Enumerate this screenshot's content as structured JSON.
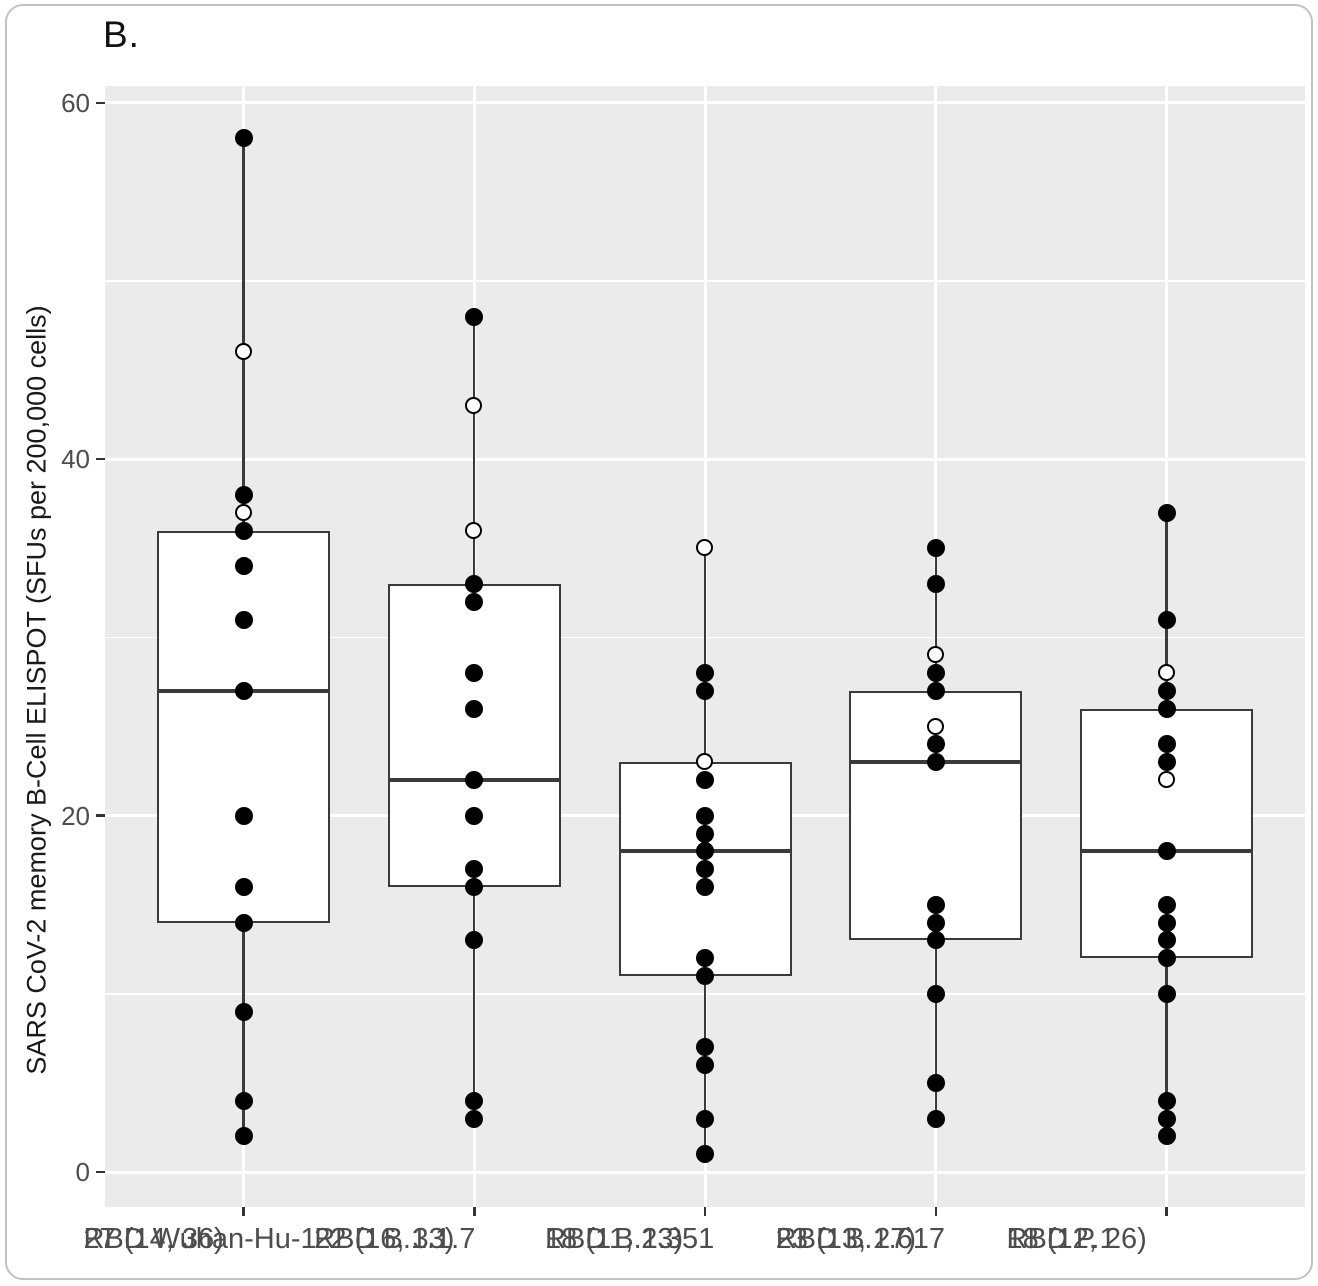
{
  "figure": {
    "panel_label": "B."
  },
  "chart_data": {
    "type": "box",
    "title": "B.",
    "xlabel": "",
    "ylabel": "SARS CoV-2 memory B-Cell ELISPOT (SFUs per 200,000 cells)",
    "ylim": [
      -1.96,
      60.94
    ],
    "yticks": [
      0,
      20,
      40,
      60
    ],
    "minor_gridlines": [
      10,
      30,
      50
    ],
    "grid": "on",
    "legend": "none",
    "point_style_note": "filled and open circles overlaid on boxplots",
    "categories": [
      {
        "label": "RBD Wuhan-Hu-1",
        "summary": "27 (14, 36)",
        "median": 27,
        "q1": 14,
        "q3": 36,
        "whisker_low": 2,
        "whisker_high": 58,
        "points": [
          {
            "value": 58,
            "open": false
          },
          {
            "value": 46,
            "open": true
          },
          {
            "value": 38,
            "open": false
          },
          {
            "value": 37,
            "open": true
          },
          {
            "value": 36,
            "open": false
          },
          {
            "value": 34,
            "open": false
          },
          {
            "value": 31,
            "open": false
          },
          {
            "value": 27,
            "open": false
          },
          {
            "value": 20,
            "open": false
          },
          {
            "value": 16,
            "open": false
          },
          {
            "value": 14,
            "open": false
          },
          {
            "value": 9,
            "open": false
          },
          {
            "value": 4,
            "open": false
          },
          {
            "value": 2,
            "open": false
          }
        ]
      },
      {
        "label": "RBD B.1.1.7",
        "summary": "22 (16, 33)",
        "median": 22,
        "q1": 16,
        "q3": 33,
        "whisker_low": 3,
        "whisker_high": 48,
        "points": [
          {
            "value": 48,
            "open": false
          },
          {
            "value": 43,
            "open": true
          },
          {
            "value": 36,
            "open": true
          },
          {
            "value": 33,
            "open": false
          },
          {
            "value": 32,
            "open": false
          },
          {
            "value": 28,
            "open": false
          },
          {
            "value": 26,
            "open": false
          },
          {
            "value": 22,
            "open": false
          },
          {
            "value": 20,
            "open": false
          },
          {
            "value": 17,
            "open": false
          },
          {
            "value": 16,
            "open": false
          },
          {
            "value": 13,
            "open": false
          },
          {
            "value": 4,
            "open": false
          },
          {
            "value": 3,
            "open": false
          }
        ]
      },
      {
        "label": "RBD B.1.351",
        "summary": "18 (11, 23)",
        "median": 18,
        "q1": 11,
        "q3": 23,
        "whisker_low": 1,
        "whisker_high": 35,
        "points": [
          {
            "value": 35,
            "open": true
          },
          {
            "value": 28,
            "open": false
          },
          {
            "value": 27,
            "open": false
          },
          {
            "value": 23,
            "open": true
          },
          {
            "value": 22,
            "open": false
          },
          {
            "value": 20,
            "open": false
          },
          {
            "value": 19,
            "open": false
          },
          {
            "value": 18,
            "open": false
          },
          {
            "value": 17,
            "open": false
          },
          {
            "value": 16,
            "open": false
          },
          {
            "value": 12,
            "open": false
          },
          {
            "value": 11,
            "open": false
          },
          {
            "value": 7,
            "open": false
          },
          {
            "value": 6,
            "open": false
          },
          {
            "value": 3,
            "open": false
          },
          {
            "value": 1,
            "open": false
          }
        ]
      },
      {
        "label": "RBD B.1.617",
        "summary": "23 (13, 27)",
        "median": 23,
        "q1": 13,
        "q3": 27,
        "whisker_low": 3,
        "whisker_high": 35,
        "points": [
          {
            "value": 35,
            "open": false
          },
          {
            "value": 33,
            "open": false
          },
          {
            "value": 29,
            "open": true
          },
          {
            "value": 28,
            "open": false
          },
          {
            "value": 27,
            "open": false
          },
          {
            "value": 25,
            "open": true
          },
          {
            "value": 24,
            "open": false
          },
          {
            "value": 23,
            "open": false
          },
          {
            "value": 15,
            "open": false
          },
          {
            "value": 14,
            "open": false
          },
          {
            "value": 13,
            "open": false
          },
          {
            "value": 10,
            "open": false
          },
          {
            "value": 5,
            "open": false
          },
          {
            "value": 3,
            "open": false
          }
        ]
      },
      {
        "label": "RBD P.1",
        "summary": "18 (12, 26)",
        "median": 18,
        "q1": 12,
        "q3": 26,
        "whisker_low": 2,
        "whisker_high": 37,
        "points": [
          {
            "value": 37,
            "open": false
          },
          {
            "value": 31,
            "open": false
          },
          {
            "value": 28,
            "open": true
          },
          {
            "value": 27,
            "open": false
          },
          {
            "value": 26,
            "open": false
          },
          {
            "value": 24,
            "open": false
          },
          {
            "value": 23,
            "open": false
          },
          {
            "value": 22,
            "open": true
          },
          {
            "value": 18,
            "open": false
          },
          {
            "value": 15,
            "open": false
          },
          {
            "value": 14,
            "open": false
          },
          {
            "value": 13,
            "open": false
          },
          {
            "value": 12,
            "open": false
          },
          {
            "value": 10,
            "open": false
          },
          {
            "value": 4,
            "open": false
          },
          {
            "value": 3,
            "open": false
          },
          {
            "value": 2,
            "open": false
          }
        ]
      }
    ],
    "colors": {
      "panel_bg": "#ebebeb",
      "grid": "#ffffff",
      "box_fill": "#ffffff",
      "box_stroke": "#3a3a3a",
      "point_fill": "#000000",
      "point_open_fill": "#ffffff",
      "tick": "#333333",
      "text": "#4d4d4d",
      "title_text": "#111111",
      "card_border": "#c2c2c2"
    }
  }
}
